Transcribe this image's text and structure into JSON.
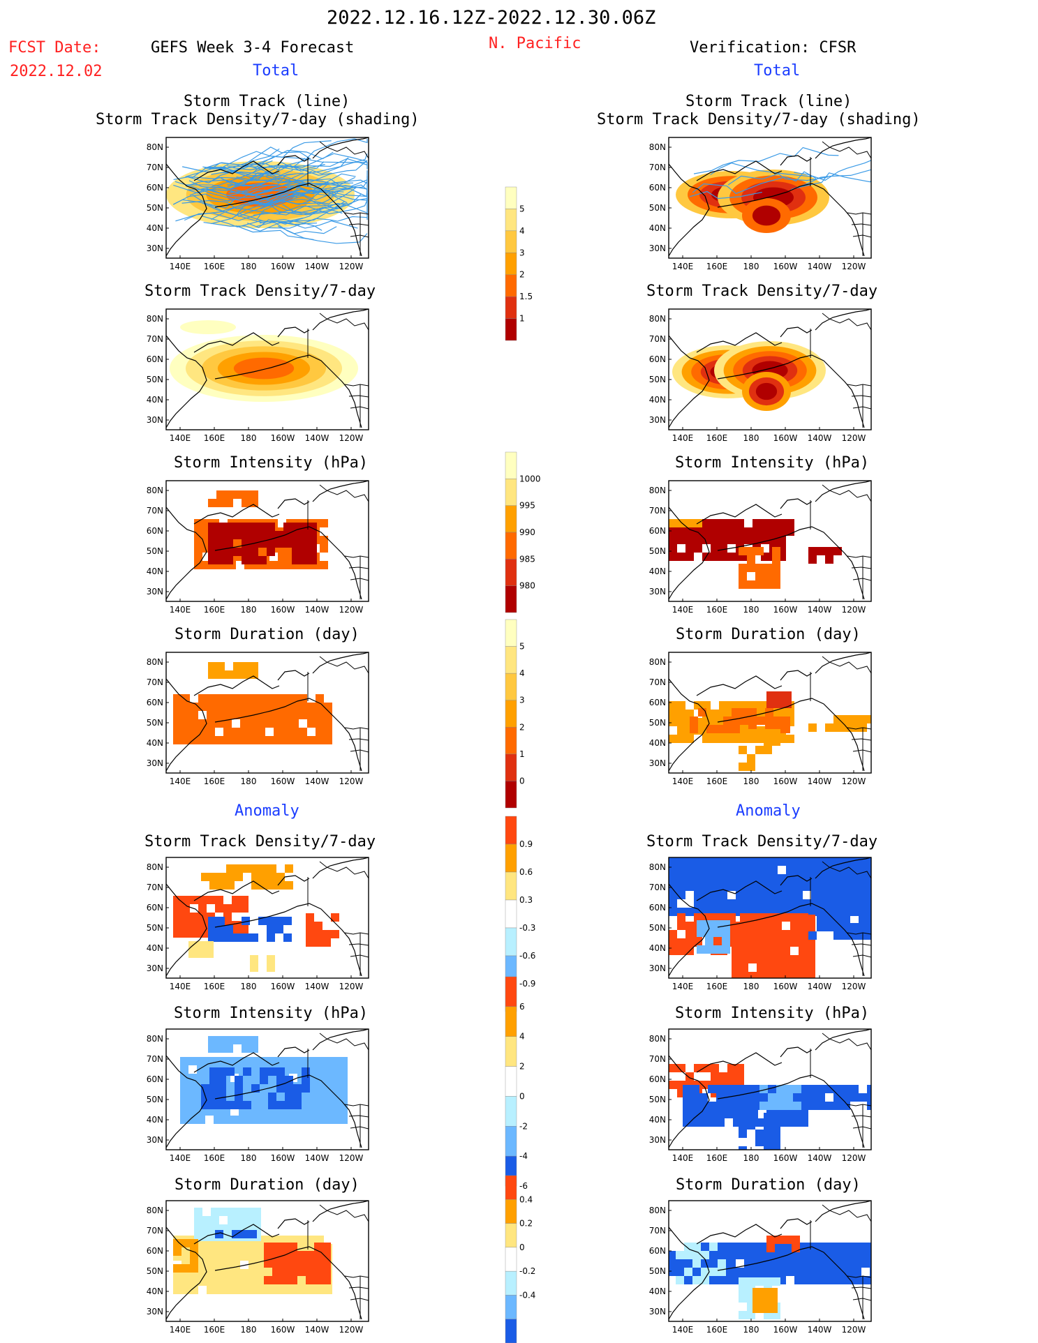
{
  "header": {
    "date_range": "2022.12.16.12Z-2022.12.30.06Z",
    "fcst_label": "FCST Date:",
    "fcst_date": "2022.12.02",
    "left_title": "GEFS Week 3-4 Forecast",
    "region": "N. Pacific",
    "right_title": "Verification: CFSR",
    "total_left": "Total",
    "total_right": "Total",
    "anomaly_left": "Anomaly",
    "anomaly_right": "Anomaly"
  },
  "panel_titles": {
    "track_line": "Storm Track (line)",
    "track_shading": "Storm Track Density/7-day (shading)",
    "density": "Storm Track Density/7-day",
    "intensity": "Storm Intensity (hPa)",
    "duration": "Storm Duration (day)"
  },
  "axes": {
    "lon_ticks": [
      "140E",
      "160E",
      "180",
      "160W",
      "140W",
      "120W"
    ],
    "lat_ticks": [
      "80N",
      "70N",
      "60N",
      "50N",
      "40N",
      "30N"
    ]
  },
  "colors": {
    "title_red": "#ff2020",
    "title_blue": "#1a3cff",
    "track_line": "#3a9ae6",
    "warm": [
      "#ffffc0",
      "#ffe680",
      "#ffc840",
      "#ffa000",
      "#ff6a00",
      "#e03010",
      "#b00000"
    ],
    "anom_warm": [
      "#ffe680",
      "#ffa000",
      "#ff4810"
    ],
    "anom_cool": [
      "#b8f0ff",
      "#6cb8ff",
      "#1a5ce6"
    ]
  },
  "chart_data": [
    {
      "type": "heatmap",
      "name": "GEFS storm track (line) + density/7-day shading",
      "region": "N. Pacific",
      "lon_range": [
        "140E",
        "120W"
      ],
      "lat_range": [
        "30N",
        "80N"
      ]
    },
    {
      "type": "heatmap",
      "name": "CFSR storm track (line) + density/7-day shading",
      "region": "N. Pacific",
      "lon_range": [
        "140E",
        "120W"
      ],
      "lat_range": [
        "30N",
        "80N"
      ]
    },
    {
      "type": "heatmap",
      "name": "GEFS storm track density/7-day"
    },
    {
      "type": "heatmap",
      "name": "CFSR storm track density/7-day"
    },
    {
      "type": "heatmap",
      "name": "GEFS storm intensity (hPa)"
    },
    {
      "type": "heatmap",
      "name": "CFSR storm intensity (hPa)"
    },
    {
      "type": "heatmap",
      "name": "GEFS storm duration (day)"
    },
    {
      "type": "heatmap",
      "name": "CFSR storm duration (day)"
    },
    {
      "type": "heatmap",
      "name": "GEFS anomaly storm track density/7-day"
    },
    {
      "type": "heatmap",
      "name": "CFSR anomaly storm track density/7-day"
    },
    {
      "type": "heatmap",
      "name": "GEFS anomaly storm intensity (hPa)"
    },
    {
      "type": "heatmap",
      "name": "CFSR anomaly storm intensity (hPa)"
    },
    {
      "type": "heatmap",
      "name": "GEFS anomaly storm duration (day)"
    },
    {
      "type": "heatmap",
      "name": "CFSR anomaly storm duration (day)"
    }
  ],
  "colorbars": [
    {
      "name": "density",
      "labels": [
        "5",
        "4",
        "3",
        "2",
        "1.5",
        "1"
      ]
    },
    {
      "name": "intensity",
      "labels": [
        "1000",
        "995",
        "990",
        "985",
        "980"
      ]
    },
    {
      "name": "duration",
      "labels": [
        "5",
        "4",
        "3",
        "2",
        "1",
        "0"
      ]
    },
    {
      "name": "density-anomaly",
      "labels": [
        "0.9",
        "0.6",
        "0.3",
        "-0.3",
        "-0.6",
        "-0.9"
      ]
    },
    {
      "name": "intensity-anomaly",
      "labels": [
        "6",
        "4",
        "2",
        "0",
        "-2",
        "-4",
        "-6"
      ]
    },
    {
      "name": "duration-anomaly",
      "labels": [
        "0.4",
        "0.2",
        "0",
        "-0.2",
        "-0.4"
      ]
    }
  ]
}
